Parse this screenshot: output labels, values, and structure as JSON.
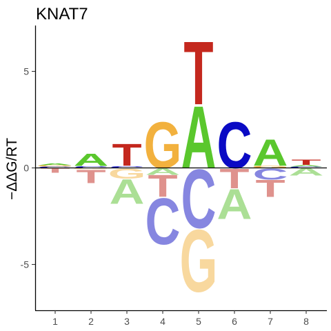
{
  "chart_data": {
    "type": "sequence-logo",
    "title": "KNAT7",
    "ylabel": "−ΔΔG/RT",
    "ylim": [
      -7.3,
      7.3
    ],
    "yticks": [
      -5,
      0,
      5
    ],
    "ytick_labels": [
      "-5",
      "0",
      "5"
    ],
    "x": [
      1,
      2,
      3,
      4,
      5,
      6,
      7,
      8
    ],
    "xtick_labels": [
      "1",
      "2",
      "3",
      "4",
      "5",
      "6",
      "7",
      "8"
    ],
    "colors": {
      "A_pos": "#5ac72d",
      "C_pos": "#0a0ac4",
      "G_pos": "#f2b13e",
      "T_pos": "#c4281e",
      "A_neg": "#abdf95",
      "C_neg": "#8686e0",
      "G_neg": "#f8d89e",
      "T_neg": "#df928d"
    },
    "positions": [
      {
        "pos": 1,
        "letters": [
          {
            "base": "A",
            "value": 0.1
          },
          {
            "base": "G",
            "value": 0.08
          },
          {
            "base": "C",
            "value": 0.07
          },
          {
            "base": "T",
            "value": -0.25
          }
        ]
      },
      {
        "pos": 2,
        "letters": [
          {
            "base": "A",
            "value": 0.65
          },
          {
            "base": "C",
            "value": 0.1
          },
          {
            "base": "G",
            "value": -0.08
          },
          {
            "base": "T",
            "value": -0.7
          }
        ]
      },
      {
        "pos": 3,
        "letters": [
          {
            "base": "C",
            "value": 0.1
          },
          {
            "base": "T",
            "value": 1.15
          },
          {
            "base": "G",
            "value": -0.55
          },
          {
            "base": "A",
            "value": -1.3
          }
        ]
      },
      {
        "pos": 4,
        "letters": [
          {
            "base": "G",
            "value": 2.45
          },
          {
            "base": "A",
            "value": -0.35
          },
          {
            "base": "T",
            "value": -1.15
          },
          {
            "base": "C",
            "value": -2.45
          }
        ]
      },
      {
        "pos": 5,
        "letters": [
          {
            "base": "A",
            "value": 3.3
          },
          {
            "base": "T",
            "value": 3.35
          },
          {
            "base": "G",
            "value": -3.3
          },
          {
            "base": "C",
            "value": -3.1
          }
        ]
      },
      {
        "pos": 6,
        "letters": [
          {
            "base": "C",
            "value": 2.45
          },
          {
            "base": "T",
            "value": -1.05
          },
          {
            "base": "A",
            "value": -1.6
          }
        ]
      },
      {
        "pos": 7,
        "letters": [
          {
            "base": "G",
            "value": 0.12
          },
          {
            "base": "A",
            "value": 1.4
          },
          {
            "base": "C",
            "value": -0.6
          },
          {
            "base": "T",
            "value": -0.9
          }
        ]
      },
      {
        "pos": 8,
        "letters": [
          {
            "base": "C",
            "value": 0.08
          },
          {
            "base": "A",
            "value": 0.08
          },
          {
            "base": "T",
            "value": 0.28
          },
          {
            "base": "A",
            "value": -0.4
          }
        ]
      }
    ]
  }
}
